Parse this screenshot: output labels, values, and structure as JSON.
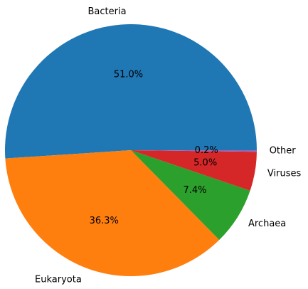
{
  "chart_data": {
    "type": "pie",
    "categories": [
      "Bacteria",
      "Eukaryota",
      "Archaea",
      "Viruses",
      "Other"
    ],
    "values": [
      51.0,
      36.3,
      7.4,
      5.0,
      0.2
    ],
    "value_labels": [
      "51.0%",
      "36.3%",
      "7.4%",
      "5.0%",
      "0.2%"
    ],
    "colors": [
      "#1f77b4",
      "#ff7f0e",
      "#2ca02c",
      "#d62728",
      "#9467bd"
    ],
    "start_angle_deg": 0,
    "direction": "counterclockwise",
    "legend": "none"
  }
}
